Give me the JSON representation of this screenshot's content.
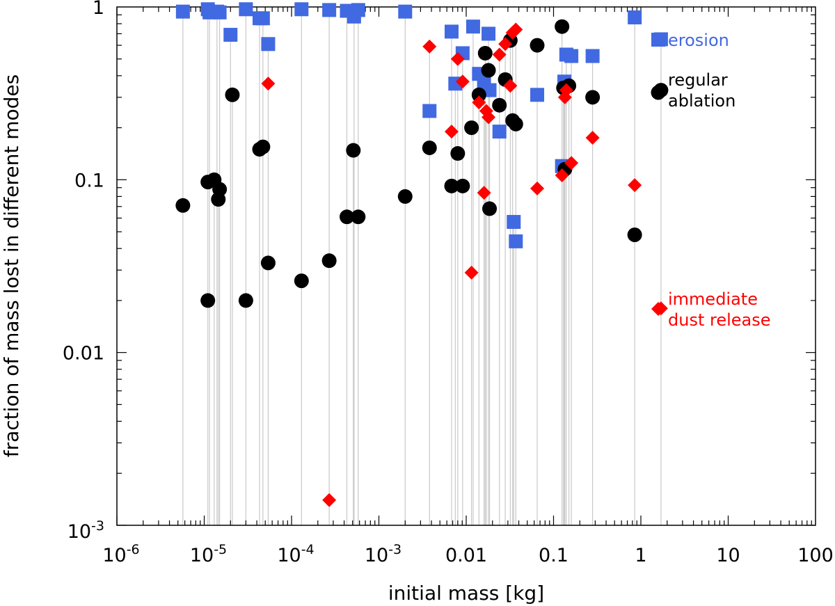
{
  "chart_data": {
    "type": "scatter",
    "title": "",
    "xlabel": "initial mass [kg]",
    "ylabel": "fraction of mass lost in different modes",
    "xscale": "log",
    "yscale": "log",
    "xlim": [
      1e-06,
      100
    ],
    "ylim": [
      0.001,
      1
    ],
    "grid": false,
    "legend_position": "right",
    "x_ticks": [
      {
        "value": 1e-06,
        "base": "10",
        "exp": "-6"
      },
      {
        "value": 1e-05,
        "base": "10",
        "exp": "-5"
      },
      {
        "value": 0.0001,
        "base": "10",
        "exp": "-4"
      },
      {
        "value": 0.001,
        "base": "10",
        "exp": "-3"
      },
      {
        "value": 0.01,
        "text": "0.01"
      },
      {
        "value": 0.1,
        "text": "0.1"
      },
      {
        "value": 1,
        "text": "1"
      },
      {
        "value": 10,
        "text": "10"
      },
      {
        "value": 100,
        "text": "100"
      }
    ],
    "y_ticks": [
      {
        "value": 0.001,
        "base": "10",
        "exp": "-3"
      },
      {
        "value": 0.01,
        "text": "0.01"
      },
      {
        "value": 0.1,
        "text": "0.1"
      },
      {
        "value": 1,
        "text": "1"
      }
    ],
    "connector_color": "#c8c8c8",
    "series": [
      {
        "name": "erosion",
        "marker": "square",
        "color": "#4169e1",
        "points": [
          [
            5.7e-06,
            0.94
          ],
          [
            1.1e-05,
            0.97
          ],
          [
            1.15e-05,
            0.93
          ],
          [
            1.4e-05,
            0.94
          ],
          [
            1.5e-05,
            0.93
          ],
          [
            2e-05,
            0.69
          ],
          [
            3e-05,
            0.97
          ],
          [
            4.3e-05,
            0.86
          ],
          [
            4.7e-05,
            0.86
          ],
          [
            5.4e-05,
            0.61
          ],
          [
            0.00013,
            0.97
          ],
          [
            0.00027,
            0.96
          ],
          [
            0.00043,
            0.95
          ],
          [
            0.00052,
            0.88
          ],
          [
            0.00058,
            0.96
          ],
          [
            0.002,
            0.94
          ],
          [
            0.0038,
            0.25
          ],
          [
            0.0068,
            0.72
          ],
          [
            0.0075,
            0.36
          ],
          [
            0.0091,
            0.54
          ],
          [
            0.012,
            0.77
          ],
          [
            0.014,
            0.41
          ],
          [
            0.016,
            0.37
          ],
          [
            0.018,
            0.7
          ],
          [
            0.0185,
            0.33
          ],
          [
            0.024,
            0.19
          ],
          [
            0.035,
            0.057
          ],
          [
            0.037,
            0.044
          ],
          [
            0.065,
            0.31
          ],
          [
            0.125,
            0.12
          ],
          [
            0.133,
            0.37
          ],
          [
            0.14,
            0.53
          ],
          [
            0.16,
            0.52
          ],
          [
            0.28,
            0.52
          ],
          [
            0.85,
            0.87
          ],
          [
            1.7,
            0.65
          ]
        ]
      },
      {
        "name": "regular ablation",
        "marker": "circle",
        "color": "#000000",
        "points": [
          [
            5.7e-06,
            0.071
          ],
          [
            1.1e-05,
            0.097
          ],
          [
            1.1e-05,
            0.02
          ],
          [
            1.3e-05,
            0.1
          ],
          [
            1.45e-05,
            0.077
          ],
          [
            1.5e-05,
            0.088
          ],
          [
            2.1e-05,
            0.31
          ],
          [
            3e-05,
            0.02
          ],
          [
            4.3e-05,
            0.15
          ],
          [
            4.7e-05,
            0.155
          ],
          [
            5.4e-05,
            0.033
          ],
          [
            0.00013,
            0.026
          ],
          [
            0.00027,
            0.034
          ],
          [
            0.00043,
            0.061
          ],
          [
            0.00051,
            0.148
          ],
          [
            0.00058,
            0.061
          ],
          [
            0.002,
            0.08
          ],
          [
            0.0038,
            0.153
          ],
          [
            0.0068,
            0.092
          ],
          [
            0.008,
            0.142
          ],
          [
            0.0091,
            0.092
          ],
          [
            0.0115,
            0.2
          ],
          [
            0.014,
            0.31
          ],
          [
            0.0165,
            0.54
          ],
          [
            0.018,
            0.43
          ],
          [
            0.0185,
            0.068
          ],
          [
            0.024,
            0.27
          ],
          [
            0.028,
            0.38
          ],
          [
            0.032,
            0.64
          ],
          [
            0.034,
            0.22
          ],
          [
            0.037,
            0.21
          ],
          [
            0.065,
            0.6
          ],
          [
            0.125,
            0.77
          ],
          [
            0.13,
            0.34
          ],
          [
            0.135,
            0.115
          ],
          [
            0.15,
            0.35
          ],
          [
            0.28,
            0.3
          ],
          [
            0.85,
            0.048
          ],
          [
            1.7,
            0.33
          ]
        ]
      },
      {
        "name": "immediate dust release",
        "marker": "diamond",
        "color": "#ff0000",
        "points": [
          [
            5.4e-05,
            0.36
          ],
          [
            0.00027,
            0.0014
          ],
          [
            0.0038,
            0.59
          ],
          [
            0.0068,
            0.19
          ],
          [
            0.008,
            0.5
          ],
          [
            0.0091,
            0.37
          ],
          [
            0.0115,
            0.029
          ],
          [
            0.014,
            0.28
          ],
          [
            0.016,
            0.084
          ],
          [
            0.017,
            0.25
          ],
          [
            0.018,
            0.23
          ],
          [
            0.024,
            0.53
          ],
          [
            0.028,
            0.61
          ],
          [
            0.032,
            0.35
          ],
          [
            0.034,
            0.71
          ],
          [
            0.037,
            0.74
          ],
          [
            0.065,
            0.089
          ],
          [
            0.125,
            0.106
          ],
          [
            0.135,
            0.3
          ],
          [
            0.14,
            0.33
          ],
          [
            0.16,
            0.125
          ],
          [
            0.28,
            0.175
          ],
          [
            0.85,
            0.093
          ],
          [
            1.7,
            0.018
          ]
        ]
      }
    ]
  },
  "legend": {
    "erosion": "erosion",
    "regular_line1": "regular",
    "regular_line2": "ablation",
    "dust_line1": "immediate",
    "dust_line2": "dust release"
  }
}
